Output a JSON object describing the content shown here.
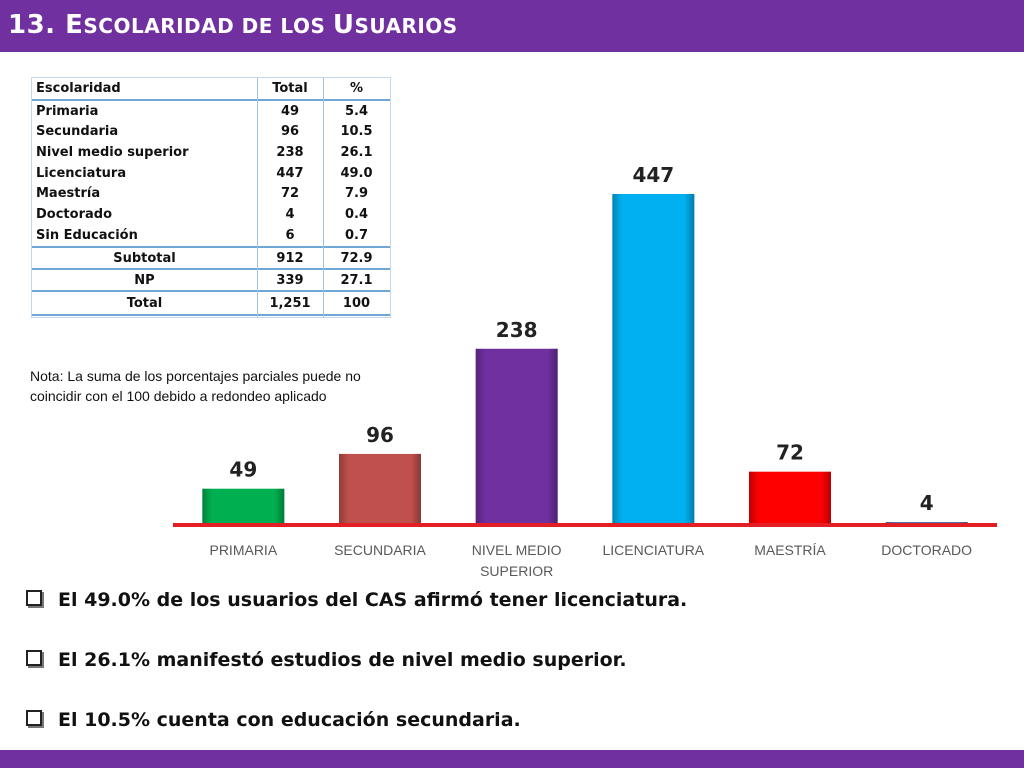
{
  "header": {
    "number": "13.",
    "title_parts": [
      {
        "big": "E",
        "small": "SCOLARIDAD DE LOS "
      },
      {
        "big": "U",
        "small": "SUARIOS"
      }
    ]
  },
  "table": {
    "headers": [
      "Escolaridad",
      "Total",
      "%"
    ],
    "rows": [
      [
        "Primaria",
        "49",
        "5.4"
      ],
      [
        "Secundaria",
        "96",
        "10.5"
      ],
      [
        "Nivel medio superior",
        "238",
        "26.1"
      ],
      [
        "Licenciatura",
        "447",
        "49.0"
      ],
      [
        "Maestría",
        "72",
        "7.9"
      ],
      [
        "Doctorado",
        "4",
        "0.4"
      ],
      [
        "Sin Educación",
        "6",
        "0.7"
      ]
    ],
    "summary_rows": [
      [
        "Subtotal",
        "912",
        "72.9"
      ],
      [
        "NP",
        "339",
        "27.1"
      ],
      [
        "Total",
        "1,251",
        "100"
      ]
    ]
  },
  "note": "Nota: La suma de los porcentajes parciales puede no coincidir con el 100 debido a redondeo aplicado",
  "chart_data": {
    "type": "bar",
    "categories": [
      "PRIMARIA",
      "SECUNDARIA",
      "NIVEL MEDIO SUPERIOR",
      "LICENCIATURA",
      "MAESTRÍA",
      "DOCTORADO"
    ],
    "category_lines": [
      [
        "PRIMARIA"
      ],
      [
        "SECUNDARIA"
      ],
      [
        "NIVEL MEDIO",
        "SUPERIOR"
      ],
      [
        "LICENCIATURA"
      ],
      [
        "MAESTRÍA"
      ],
      [
        "DOCTORADO"
      ]
    ],
    "values": [
      49,
      96,
      238,
      447,
      72,
      4
    ],
    "colors": [
      "#00b050",
      "#c0504d",
      "#7030a0",
      "#00b0f0",
      "#ff0000",
      "#4f6ea8"
    ],
    "baseline_color": "#e31e24",
    "title": "",
    "xlabel": "",
    "ylabel": "",
    "ylim": [
      0,
      447
    ],
    "grid": false,
    "data_labels": true
  },
  "bullets": [
    "El 49.0% de los usuarios del CAS afirmó tener licenciatura.",
    "El 26.1% manifestó estudios de nivel medio superior.",
    "El 10.5% cuenta con educación secundaria."
  ],
  "colors": {
    "brand_purple": "#7030a0",
    "table_rule": "#6ea7d6"
  }
}
